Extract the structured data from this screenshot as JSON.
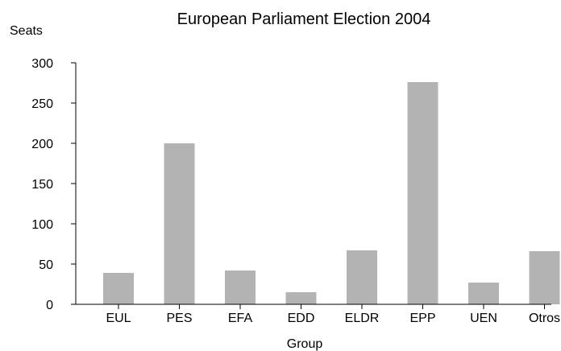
{
  "chart_data": {
    "type": "bar",
    "title": "European Parliament Election 2004",
    "xlabel": "Group",
    "ylabel": "Seats",
    "categories": [
      "EUL",
      "PES",
      "EFA",
      "EDD",
      "ELDR",
      "EPP",
      "UEN",
      "Otros"
    ],
    "values": [
      39,
      200,
      42,
      15,
      67,
      276,
      27,
      66
    ],
    "ylim": [
      0,
      300
    ],
    "yticks": [
      0,
      50,
      100,
      150,
      200,
      250,
      300
    ],
    "grid": false,
    "legend": "none",
    "colors": {
      "bar": "#b3b3b3",
      "axis": "#000000",
      "text": "#000000",
      "background": "#ffffff"
    }
  }
}
